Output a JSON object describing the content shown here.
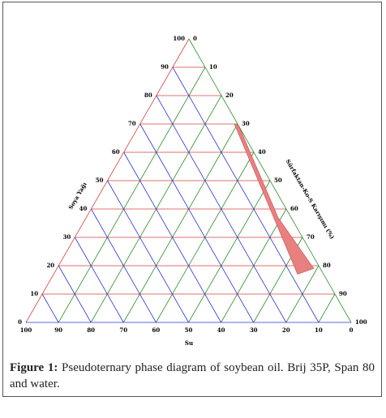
{
  "chart_data": {
    "type": "ternary",
    "left_axis": {
      "title": "Soya Yağı",
      "ticks": [
        0,
        10,
        20,
        30,
        40,
        50,
        60,
        70,
        80,
        90,
        100
      ],
      "color": "#d04040"
    },
    "right_axis": {
      "title": "Sürfaktan-Ko-S Karışımı (%)",
      "ticks": [
        0,
        10,
        20,
        30,
        40,
        50,
        60,
        70,
        80,
        90,
        100
      ],
      "color": "#2a8a2a"
    },
    "bottom_axis": {
      "title": "Su",
      "ticks": [
        0,
        10,
        20,
        30,
        40,
        50,
        60,
        70,
        80,
        90,
        100
      ],
      "color": "#3030d0"
    },
    "region": {
      "color": "#e88080",
      "oil": [
        70,
        69,
        37,
        19,
        17
      ],
      "surfactant": [
        29,
        31,
        59,
        79,
        75
      ],
      "water": [
        1,
        0,
        4,
        2,
        8
      ]
    }
  },
  "caption": {
    "label": "Figure 1:",
    "text": "Pseudoternary phase diagram of soybean oil. Brij 35P, Span 80 and water."
  }
}
